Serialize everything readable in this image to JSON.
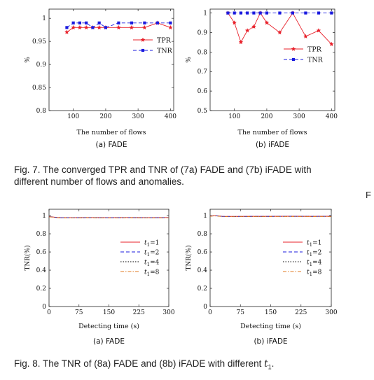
{
  "fig7": {
    "caption_line1": "Fig. 7. The converged TPR and TNR of (7a) FADE and (7b) iFADE with",
    "caption_line2": "different number of flows and anomalies."
  },
  "fig8": {
    "caption_prefix": "Fig. 8. The TNR of (8a) FADE and (8b) iFADE with different ",
    "caption_var": "t",
    "caption_sub": "1",
    "caption_suffix": "."
  },
  "side_letter": "F",
  "chart_data": [
    {
      "id": "fig7a",
      "type": "line",
      "subcaption": "(a) FADE",
      "xlabel": "The number of flows",
      "ylabel": "%",
      "xlim": [
        25,
        410
      ],
      "ylim": [
        0.8,
        1.02
      ],
      "xticks": [
        "100",
        "200",
        "300",
        "400"
      ],
      "xtick_values": [
        100,
        200,
        300,
        400
      ],
      "yticks": [
        "0.8",
        "0.85",
        "0.9",
        "0.95",
        "1"
      ],
      "ytick_values": [
        0.8,
        0.85,
        0.9,
        0.95,
        1.0
      ],
      "legend_position": "right-middle",
      "series": [
        {
          "name": "TPR",
          "color": "#e8202a",
          "style": "solid",
          "marker": "star",
          "x": [
            80,
            100,
            120,
            140,
            160,
            180,
            200,
            240,
            280,
            320,
            360,
            400
          ],
          "y": [
            0.97,
            0.98,
            0.98,
            0.98,
            0.98,
            0.98,
            0.98,
            0.98,
            0.98,
            0.98,
            0.99,
            0.98
          ]
        },
        {
          "name": "TNR",
          "color": "#1a1adf",
          "style": "dashed",
          "marker": "square",
          "x": [
            80,
            100,
            120,
            140,
            160,
            180,
            200,
            240,
            280,
            320,
            360,
            400
          ],
          "y": [
            0.98,
            0.99,
            0.99,
            0.99,
            0.98,
            0.99,
            0.98,
            0.99,
            0.99,
            0.99,
            0.99,
            0.99
          ]
        }
      ]
    },
    {
      "id": "fig7b",
      "type": "line",
      "subcaption": "(b) iFADE",
      "xlabel": "The number of flows",
      "ylabel": "%",
      "xlim": [
        25,
        410
      ],
      "ylim": [
        0.5,
        1.02
      ],
      "xticks": [
        "100",
        "200",
        "300",
        "400"
      ],
      "xtick_values": [
        100,
        200,
        300,
        400
      ],
      "yticks": [
        "0.5",
        "0.6",
        "0.7",
        "0.8",
        "0.9",
        "1"
      ],
      "ytick_values": [
        0.5,
        0.6,
        0.7,
        0.8,
        0.9,
        1.0
      ],
      "legend_position": "right-middle",
      "series": [
        {
          "name": "TPR",
          "color": "#e8202a",
          "style": "solid",
          "marker": "star",
          "x": [
            80,
            100,
            120,
            140,
            160,
            180,
            200,
            240,
            280,
            320,
            360,
            400
          ],
          "y": [
            1.0,
            0.95,
            0.85,
            0.91,
            0.93,
            1.0,
            0.95,
            0.9,
            1.0,
            0.88,
            0.91,
            0.84
          ]
        },
        {
          "name": "TNR",
          "color": "#1a1adf",
          "style": "dashed",
          "marker": "square",
          "x": [
            80,
            100,
            120,
            140,
            160,
            180,
            200,
            240,
            280,
            320,
            360,
            400
          ],
          "y": [
            1.0,
            1.0,
            1.0,
            1.0,
            1.0,
            1.0,
            1.0,
            1.0,
            1.0,
            1.0,
            1.0,
            1.0
          ]
        }
      ]
    },
    {
      "id": "fig8a",
      "type": "line",
      "subcaption": "(a) FADE",
      "xlabel": "Detecting time (s)",
      "ylabel": "TNR(%)",
      "xlim": [
        0,
        300
      ],
      "ylim": [
        0,
        1.07
      ],
      "xticks": [
        "0",
        "75",
        "150",
        "225",
        "300"
      ],
      "xtick_values": [
        0,
        75,
        150,
        225,
        300
      ],
      "yticks": [
        "0",
        "0.2",
        "0.4",
        "0.6",
        "0.8",
        "1"
      ],
      "ytick_values": [
        0,
        0.2,
        0.4,
        0.6,
        0.8,
        1.0
      ],
      "legend_position": "right-middle",
      "series": [
        {
          "name": "t1=1",
          "label_var": "t",
          "label_sub": "1",
          "label_val": "=1",
          "color": "#e8202a",
          "style": "solid",
          "x": [
            0,
            10,
            20,
            30,
            60,
            100,
            150,
            200,
            250,
            300
          ],
          "y": [
            0.99,
            0.985,
            0.98,
            0.978,
            0.978,
            0.979,
            0.978,
            0.979,
            0.978,
            0.979
          ]
        },
        {
          "name": "t1=2",
          "label_var": "t",
          "label_sub": "1",
          "label_val": "=2",
          "color": "#1a1adf",
          "style": "dashed",
          "x": [
            0,
            10,
            20,
            30,
            60,
            100,
            150,
            200,
            250,
            300
          ],
          "y": [
            0.988,
            0.984,
            0.979,
            0.977,
            0.977,
            0.978,
            0.977,
            0.978,
            0.977,
            0.978
          ]
        },
        {
          "name": "t1=4",
          "label_var": "t",
          "label_sub": "1",
          "label_val": "=4",
          "color": "#000000",
          "style": "dotted",
          "x": [
            0,
            10,
            20,
            30,
            60,
            100,
            150,
            200,
            250,
            300
          ],
          "y": [
            0.987,
            0.983,
            0.978,
            0.976,
            0.976,
            0.977,
            0.976,
            0.977,
            0.976,
            0.977
          ]
        },
        {
          "name": "t1=8",
          "label_var": "t",
          "label_sub": "1",
          "label_val": "=8",
          "color": "#e07a20",
          "style": "dashdot",
          "x": [
            0,
            10,
            20,
            30,
            60,
            100,
            150,
            200,
            250,
            300
          ],
          "y": [
            0.986,
            0.982,
            0.977,
            0.975,
            0.975,
            0.976,
            0.975,
            0.976,
            0.975,
            0.976
          ]
        }
      ]
    },
    {
      "id": "fig8b",
      "type": "line",
      "subcaption": "(b) iFADE",
      "xlabel": "Detecting time (s)",
      "ylabel": "TNR(%)",
      "xlim": [
        0,
        300
      ],
      "ylim": [
        0,
        1.07
      ],
      "xticks": [
        "0",
        "75",
        "150",
        "225",
        "300"
      ],
      "xtick_values": [
        0,
        75,
        150,
        225,
        300
      ],
      "yticks": [
        "0",
        "0.2",
        "0.4",
        "0.6",
        "0.8",
        "1"
      ],
      "ytick_values": [
        0,
        0.2,
        0.4,
        0.6,
        0.8,
        1.0
      ],
      "legend_position": "right-middle",
      "series": [
        {
          "name": "t1=1",
          "label_var": "t",
          "label_sub": "1",
          "label_val": "=1",
          "color": "#e8202a",
          "style": "solid",
          "x": [
            0,
            10,
            20,
            30,
            60,
            100,
            150,
            200,
            250,
            300
          ],
          "y": [
            0.995,
            1.0,
            0.997,
            0.992,
            0.991,
            0.992,
            0.992,
            0.993,
            0.992,
            0.993
          ]
        },
        {
          "name": "t1=2",
          "label_var": "t",
          "label_sub": "1",
          "label_val": "=2",
          "color": "#1a1adf",
          "style": "dashed",
          "x": [
            0,
            10,
            20,
            30,
            60,
            100,
            150,
            200,
            250,
            300
          ],
          "y": [
            0.994,
            0.999,
            0.996,
            0.991,
            0.99,
            0.991,
            0.991,
            0.992,
            0.991,
            0.992
          ]
        },
        {
          "name": "t1=4",
          "label_var": "t",
          "label_sub": "1",
          "label_val": "=4",
          "color": "#000000",
          "style": "dotted",
          "x": [
            0,
            10,
            20,
            30,
            60,
            100,
            150,
            200,
            250,
            300
          ],
          "y": [
            0.993,
            0.998,
            0.995,
            0.99,
            0.989,
            0.99,
            0.99,
            0.991,
            0.99,
            0.991
          ]
        },
        {
          "name": "t1=8",
          "label_var": "t",
          "label_sub": "1",
          "label_val": "=8",
          "color": "#e07a20",
          "style": "dashdot",
          "x": [
            0,
            10,
            20,
            30,
            60,
            100,
            150,
            200,
            250,
            300
          ],
          "y": [
            0.992,
            0.997,
            0.994,
            0.989,
            0.988,
            0.989,
            0.989,
            0.99,
            0.989,
            0.99
          ]
        }
      ]
    }
  ]
}
